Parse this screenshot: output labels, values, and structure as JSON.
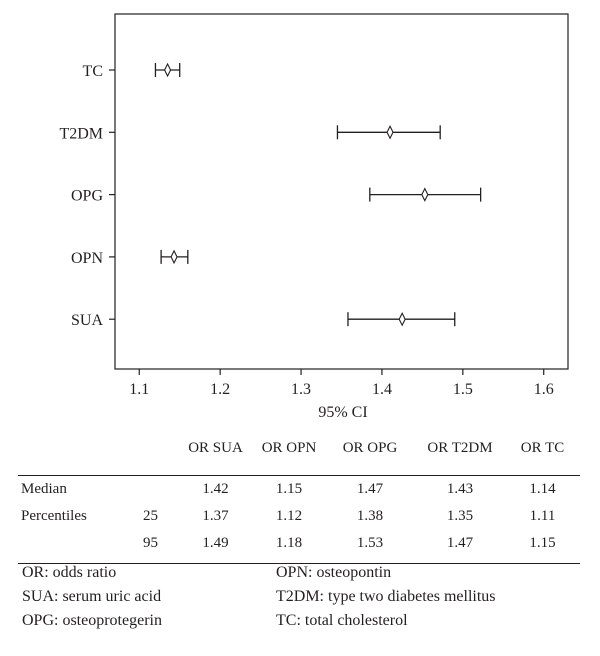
{
  "chart_data": {
    "type": "forest",
    "xlabel": "95% CI",
    "xlim": [
      1.07,
      1.63
    ],
    "xticks": [
      1.1,
      1.2,
      1.3,
      1.4,
      1.5,
      1.6
    ],
    "xtick_labels": [
      "1.1",
      "1.2",
      "1.3",
      "1.4",
      "1.5",
      "1.6"
    ],
    "categories": [
      "TC",
      "T2DM",
      "OPG",
      "OPN",
      "SUA"
    ],
    "points": [
      {
        "label": "TC",
        "estimate": 1.135,
        "lower": 1.12,
        "upper": 1.15
      },
      {
        "label": "T2DM",
        "estimate": 1.41,
        "lower": 1.345,
        "upper": 1.472
      },
      {
        "label": "OPG",
        "estimate": 1.453,
        "lower": 1.385,
        "upper": 1.522
      },
      {
        "label": "OPN",
        "estimate": 1.143,
        "lower": 1.127,
        "upper": 1.16
      },
      {
        "label": "SUA",
        "estimate": 1.425,
        "lower": 1.358,
        "upper": 1.49
      }
    ]
  },
  "table": {
    "headers": [
      "",
      "",
      "OR SUA",
      "OR OPN",
      "OR OPG",
      "OR T2DM",
      "OR TC"
    ],
    "rows": [
      [
        "Median",
        "",
        "1.42",
        "1.15",
        "1.47",
        "1.43",
        "1.14"
      ],
      [
        "Percentiles",
        "25",
        "1.37",
        "1.12",
        "1.38",
        "1.35",
        "1.11"
      ],
      [
        "",
        "95",
        "1.49",
        "1.18",
        "1.53",
        "1.47",
        "1.15"
      ]
    ]
  },
  "notes": [
    [
      "OR: odds ratio",
      "OPN: osteopontin"
    ],
    [
      "SUA: serum uric acid",
      "T2DM: type two diabetes mellitus"
    ],
    [
      "OPG: osteoprotegerin",
      "TC: total cholesterol"
    ]
  ]
}
